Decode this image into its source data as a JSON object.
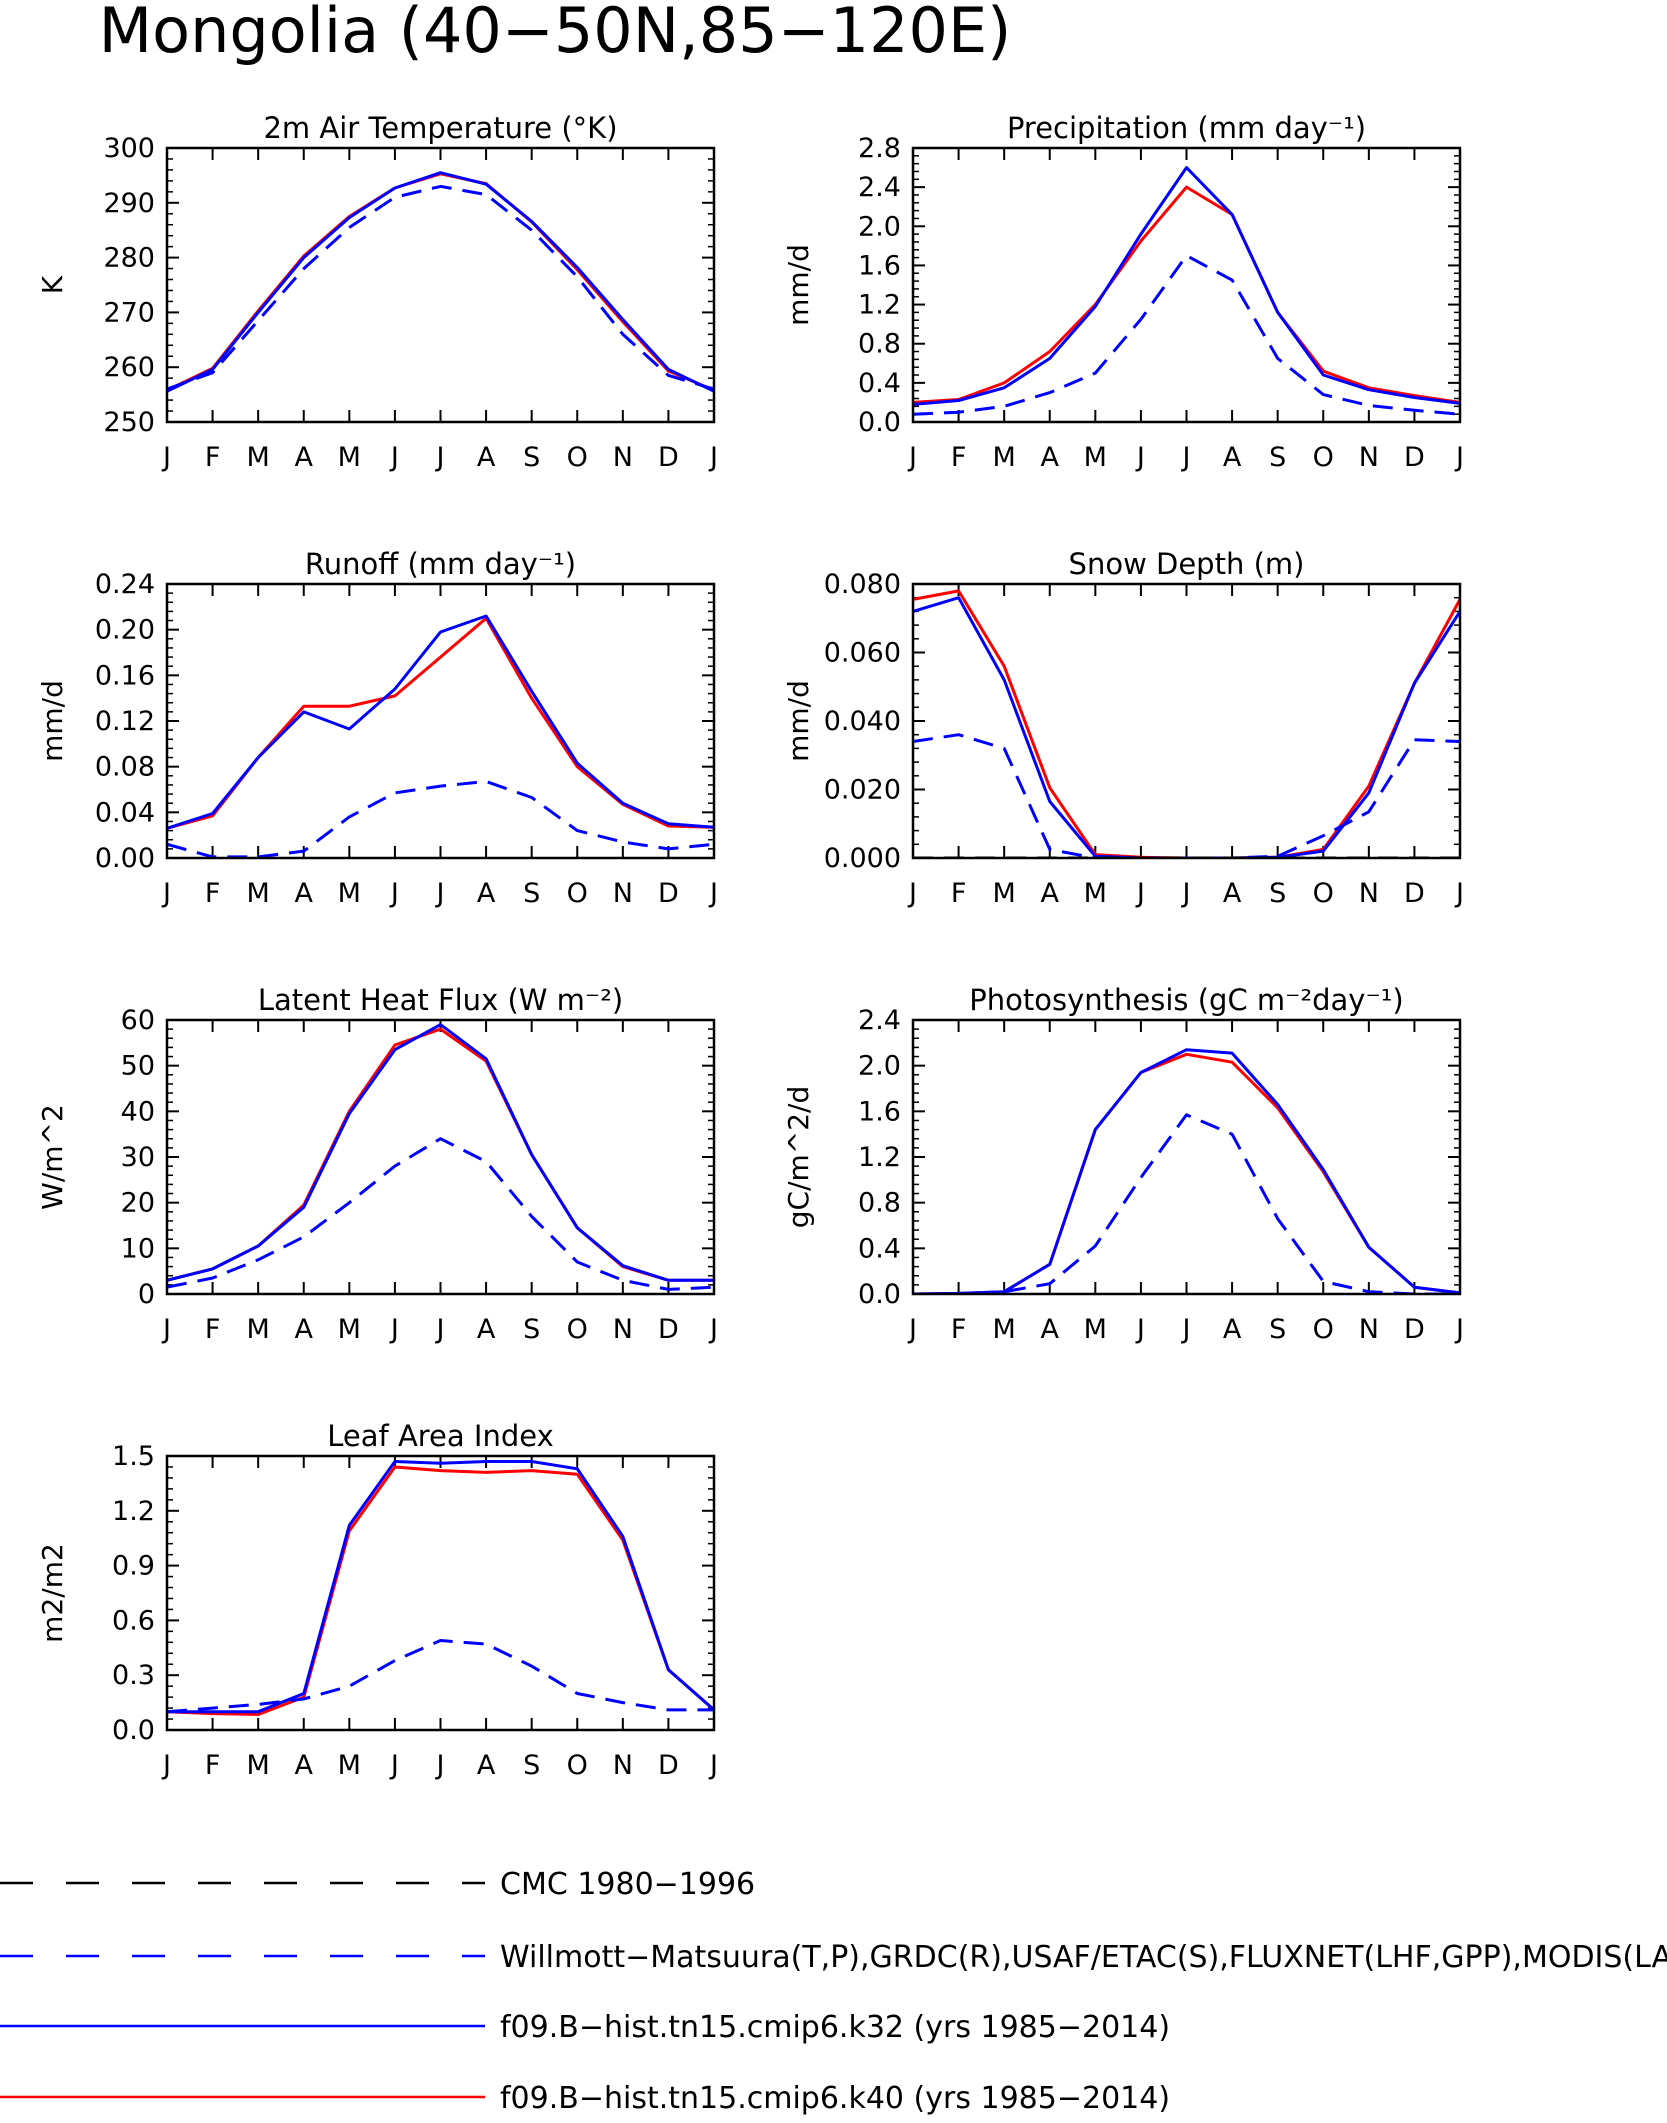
{
  "title": "Mongolia (40−50N,85−120E)",
  "colors": {
    "obs": "#0000ff",
    "k32": "#0000ff",
    "k40": "#ff0000",
    "cmc": "#000000"
  },
  "legend": {
    "placement": "bottom",
    "entries": [
      {
        "label": "CMC 1980−1996",
        "style": "dashed",
        "color": "#000000"
      },
      {
        "label": "Willmott−Matsuura(T,P),GRDC(R),USAF/ETAC(S),FLUXNET(LHF,GPP),MODIS(LAI)",
        "style": "dashed",
        "color": "#0000ff"
      },
      {
        "label": "f09.B−hist.tn15.cmip6.k32 (yrs 1985−2014)",
        "style": "solid",
        "color": "#0000ff"
      },
      {
        "label": "f09.B−hist.tn15.cmip6.k40 (yrs 1985−2014)",
        "style": "solid",
        "color": "#ff0000"
      }
    ]
  },
  "chart_data": [
    {
      "type": "line",
      "title": "2m Air Temperature (°K)",
      "ylabel": "K",
      "categories": [
        "J",
        "F",
        "M",
        "A",
        "M",
        "J",
        "J",
        "A",
        "S",
        "O",
        "N",
        "D",
        "J"
      ],
      "ylim": [
        250,
        300
      ],
      "yticks": [
        "250",
        "260",
        "270",
        "280",
        "290",
        "300"
      ],
      "series": [
        {
          "name": "f09.B−hist.tn15.cmip6.k40 (yrs 1985−2014)",
          "style": "solid",
          "color": "#ff0000",
          "values": [
            255.8,
            259.8,
            270.3,
            280.3,
            287.5,
            292.7,
            295.3,
            293.5,
            286.5,
            277.8,
            268.3,
            259.3,
            255.8
          ]
        },
        {
          "name": "f09.B−hist.tn15.cmip6.k32 (yrs 1985−2014)",
          "style": "solid",
          "color": "#0000ff",
          "values": [
            255.6,
            259.6,
            270.0,
            280.0,
            287.3,
            292.7,
            295.5,
            293.4,
            286.6,
            278.2,
            268.7,
            259.6,
            255.6
          ]
        },
        {
          "name": "Willmott−Matsuura(T,P),GRDC(R),USAF/ETAC(S),FLUXNET(LHF,GPP),MODIS(LAI)",
          "style": "dashed",
          "color": "#0000ff",
          "values": [
            256.0,
            259.0,
            268.5,
            278.0,
            285.5,
            291.0,
            293.0,
            291.5,
            285.0,
            276.5,
            266.0,
            258.5,
            256.0
          ]
        }
      ]
    },
    {
      "type": "line",
      "title": "Precipitation (mm day⁻¹)",
      "ylabel": "mm/d",
      "categories": [
        "J",
        "F",
        "M",
        "A",
        "M",
        "J",
        "J",
        "A",
        "S",
        "O",
        "N",
        "D",
        "J"
      ],
      "ylim": [
        0,
        2.8
      ],
      "yticks": [
        "0.0",
        "0.4",
        "0.8",
        "1.2",
        "1.6",
        "2.0",
        "2.4",
        "2.8"
      ],
      "series": [
        {
          "name": "f09.B−hist.tn15.cmip6.k40 (yrs 1985−2014)",
          "style": "solid",
          "color": "#ff0000",
          "values": [
            0.2,
            0.23,
            0.4,
            0.72,
            1.2,
            1.85,
            2.4,
            2.12,
            1.12,
            0.52,
            0.35,
            0.27,
            0.2
          ]
        },
        {
          "name": "f09.B−hist.tn15.cmip6.k32 (yrs 1985−2014)",
          "style": "solid",
          "color": "#0000ff",
          "values": [
            0.18,
            0.22,
            0.35,
            0.65,
            1.18,
            1.92,
            2.6,
            2.12,
            1.12,
            0.48,
            0.33,
            0.25,
            0.19
          ]
        },
        {
          "name": "Willmott−Matsuura(T,P),GRDC(R),USAF/ETAC(S),FLUXNET(LHF,GPP),MODIS(LAI)",
          "style": "dashed",
          "color": "#0000ff",
          "values": [
            0.08,
            0.1,
            0.16,
            0.3,
            0.5,
            1.05,
            1.7,
            1.45,
            0.65,
            0.28,
            0.17,
            0.12,
            0.08
          ]
        }
      ]
    },
    {
      "type": "line",
      "title": "Runoff (mm day⁻¹)",
      "ylabel": "mm/d",
      "categories": [
        "J",
        "F",
        "M",
        "A",
        "M",
        "J",
        "J",
        "A",
        "S",
        "O",
        "N",
        "D",
        "J"
      ],
      "ylim": [
        0,
        0.24
      ],
      "yticks": [
        "0.00",
        "0.04",
        "0.08",
        "0.12",
        "0.16",
        "0.20",
        "0.24"
      ],
      "series": [
        {
          "name": "f09.B−hist.tn15.cmip6.k40 (yrs 1985−2014)",
          "style": "solid",
          "color": "#ff0000",
          "values": [
            0.026,
            0.037,
            0.088,
            0.133,
            0.133,
            0.142,
            0.176,
            0.21,
            0.14,
            0.08,
            0.047,
            0.028,
            0.027
          ]
        },
        {
          "name": "f09.B−hist.tn15.cmip6.k32 (yrs 1985−2014)",
          "style": "solid",
          "color": "#0000ff",
          "values": [
            0.026,
            0.039,
            0.088,
            0.128,
            0.113,
            0.148,
            0.198,
            0.212,
            0.146,
            0.083,
            0.048,
            0.03,
            0.027
          ]
        },
        {
          "name": "Willmott−Matsuura(T,P),GRDC(R),USAF/ETAC(S),FLUXNET(LHF,GPP),MODIS(LAI)",
          "style": "dashed",
          "color": "#0000ff",
          "values": [
            0.012,
            0.001,
            0.001,
            0.006,
            0.036,
            0.057,
            0.063,
            0.067,
            0.053,
            0.024,
            0.014,
            0.008,
            0.012
          ]
        }
      ]
    },
    {
      "type": "line",
      "title": "Snow Depth (m)",
      "ylabel": "mm/d",
      "categories": [
        "J",
        "F",
        "M",
        "A",
        "M",
        "J",
        "J",
        "A",
        "S",
        "O",
        "N",
        "D",
        "J"
      ],
      "ylim": [
        0,
        0.08
      ],
      "yticks": [
        "0.000",
        "0.020",
        "0.040",
        "0.060",
        "0.080"
      ],
      "series": [
        {
          "name": "f09.B−hist.tn15.cmip6.k40 (yrs 1985−2014)",
          "style": "solid",
          "color": "#ff0000",
          "values": [
            0.0755,
            0.078,
            0.056,
            0.0205,
            0.001,
            0.0002,
            0.0,
            0.0,
            0.0002,
            0.0025,
            0.021,
            0.051,
            0.0755
          ]
        },
        {
          "name": "f09.B−hist.tn15.cmip6.k32 (yrs 1985−2014)",
          "style": "solid",
          "color": "#0000ff",
          "values": [
            0.072,
            0.076,
            0.052,
            0.0165,
            0.0005,
            0.0,
            0.0,
            0.0,
            0.0002,
            0.002,
            0.019,
            0.051,
            0.072
          ]
        },
        {
          "name": "Willmott−Matsuura(T,P),GRDC(R),USAF/ETAC(S),FLUXNET(LHF,GPP),MODIS(LAI)",
          "style": "dashed",
          "color": "#0000ff",
          "values": [
            0.034,
            0.036,
            0.032,
            0.0025,
            0.0,
            0.0,
            0.0,
            0.0,
            0.0005,
            0.0065,
            0.0135,
            0.0345,
            0.034
          ]
        },
        {
          "name": "CMC 1980−1996",
          "style": "dashed",
          "color": "#000000",
          "values": [
            0,
            0,
            0,
            0,
            0,
            0,
            0,
            0,
            0,
            0,
            0,
            0,
            0
          ]
        }
      ]
    },
    {
      "type": "line",
      "title": "Latent Heat Flux (W m⁻²)",
      "ylabel": "W/m^2",
      "categories": [
        "J",
        "F",
        "M",
        "A",
        "M",
        "J",
        "J",
        "A",
        "S",
        "O",
        "N",
        "D",
        "J"
      ],
      "ylim": [
        0,
        60
      ],
      "yticks": [
        "0",
        "10",
        "20",
        "30",
        "40",
        "50",
        "60"
      ],
      "series": [
        {
          "name": "f09.B−hist.tn15.cmip6.k40 (yrs 1985−2014)",
          "style": "solid",
          "color": "#ff0000",
          "values": [
            3.0,
            5.5,
            10.5,
            19.5,
            40.0,
            54.5,
            58.0,
            51.0,
            30.5,
            14.5,
            6.0,
            3.0,
            3.0
          ]
        },
        {
          "name": "f09.B−hist.tn15.cmip6.k32 (yrs 1985−2014)",
          "style": "solid",
          "color": "#0000ff",
          "values": [
            3.0,
            5.5,
            10.5,
            19.0,
            39.5,
            53.5,
            59.0,
            51.5,
            30.5,
            14.5,
            6.2,
            3.0,
            3.0
          ]
        },
        {
          "name": "Willmott−Matsuura(T,P),GRDC(R),USAF/ETAC(S),FLUXNET(LHF,GPP),MODIS(LAI)",
          "style": "dashed",
          "color": "#0000ff",
          "values": [
            1.5,
            3.5,
            7.5,
            12.5,
            20.0,
            28.0,
            34.0,
            29.0,
            17.0,
            7.0,
            3.0,
            1.0,
            1.5
          ]
        }
      ]
    },
    {
      "type": "line",
      "title": "Photosynthesis (gC m⁻²day⁻¹)",
      "ylabel": "gC/m^2/d",
      "categories": [
        "J",
        "F",
        "M",
        "A",
        "M",
        "J",
        "J",
        "A",
        "S",
        "O",
        "N",
        "D",
        "J"
      ],
      "ylim": [
        0,
        2.4
      ],
      "yticks": [
        "0.0",
        "0.4",
        "0.8",
        "1.2",
        "1.6",
        "2.0",
        "2.4"
      ],
      "series": [
        {
          "name": "f09.B−hist.tn15.cmip6.k40 (yrs 1985−2014)",
          "style": "solid",
          "color": "#ff0000",
          "values": [
            0.0,
            0.005,
            0.02,
            0.26,
            1.44,
            1.94,
            2.1,
            2.03,
            1.63,
            1.07,
            0.41,
            0.06,
            0.01
          ]
        },
        {
          "name": "f09.B−hist.tn15.cmip6.k32 (yrs 1985−2014)",
          "style": "solid",
          "color": "#0000ff",
          "values": [
            0.0,
            0.005,
            0.02,
            0.26,
            1.44,
            1.94,
            2.14,
            2.11,
            1.66,
            1.09,
            0.41,
            0.06,
            0.01
          ]
        },
        {
          "name": "Willmott−Matsuura(T,P),GRDC(R),USAF/ETAC(S),FLUXNET(LHF,GPP),MODIS(LAI)",
          "style": "dashed",
          "color": "#0000ff",
          "values": [
            0.0,
            0.0,
            0.02,
            0.09,
            0.42,
            1.02,
            1.57,
            1.4,
            0.66,
            0.11,
            0.02,
            0.0,
            0.0
          ]
        }
      ]
    },
    {
      "type": "line",
      "title": "Leaf Area Index",
      "ylabel": "m2/m2",
      "categories": [
        "J",
        "F",
        "M",
        "A",
        "M",
        "J",
        "J",
        "A",
        "S",
        "O",
        "N",
        "D",
        "J"
      ],
      "ylim": [
        0,
        1.5
      ],
      "yticks": [
        "0.0",
        "0.3",
        "0.6",
        "0.9",
        "1.2",
        "1.5"
      ],
      "series": [
        {
          "name": "f09.B−hist.tn15.cmip6.k40 (yrs 1985−2014)",
          "style": "solid",
          "color": "#ff0000",
          "values": [
            0.1,
            0.09,
            0.085,
            0.18,
            1.09,
            1.44,
            1.42,
            1.41,
            1.42,
            1.4,
            1.04,
            0.33,
            0.11
          ]
        },
        {
          "name": "f09.B−hist.tn15.cmip6.k32 (yrs 1985−2014)",
          "style": "solid",
          "color": "#0000ff",
          "values": [
            0.1,
            0.1,
            0.1,
            0.2,
            1.12,
            1.47,
            1.46,
            1.47,
            1.47,
            1.43,
            1.06,
            0.33,
            0.11
          ]
        },
        {
          "name": "Willmott−Matsuura(T,P),GRDC(R),USAF/ETAC(S),FLUXNET(LHF,GPP),MODIS(LAI)",
          "style": "dashed",
          "color": "#0000ff",
          "values": [
            0.1,
            0.12,
            0.14,
            0.17,
            0.24,
            0.38,
            0.49,
            0.47,
            0.35,
            0.2,
            0.15,
            0.11,
            0.11
          ]
        }
      ]
    }
  ]
}
